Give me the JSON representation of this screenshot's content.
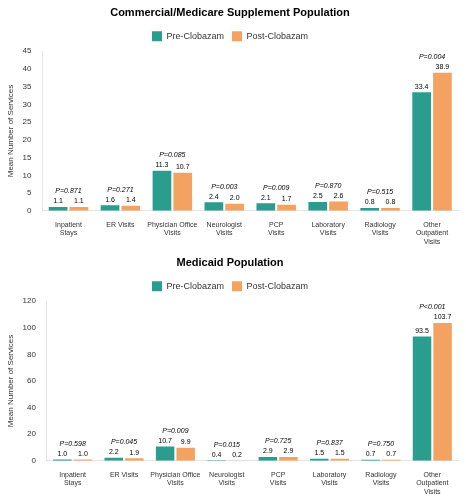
{
  "chart_data": [
    {
      "type": "bar",
      "title": "Commercial/Medicare Supplement Population",
      "categories": [
        "Inpatient\nStays",
        "ER Visits",
        "Physician Office\nVisits",
        "Neurologist\nVisits",
        "PCP\nVisits",
        "Laboratory\nVisits",
        "Radiology\nVisits",
        "Other\nOutpatient\nVisits"
      ],
      "series": [
        {
          "name": "Pre-Clobazam",
          "color": "#2A9D8F",
          "values": [
            1.1,
            1.6,
            11.3,
            2.4,
            2.1,
            2.5,
            0.8,
            33.4
          ],
          "value_labels": [
            "1.1",
            "1.6",
            "11.3",
            "2.4",
            "2.1",
            "2.5",
            "0.8",
            "33.4"
          ]
        },
        {
          "name": "Post-Clobazam",
          "color": "#F4A261",
          "values": [
            1.1,
            1.4,
            10.7,
            2.0,
            1.7,
            2.6,
            0.8,
            38.9
          ],
          "value_labels": [
            "1.1",
            "1.4",
            "10.7",
            "2.0",
            "1.7",
            "2.6",
            "0.8",
            "38.9"
          ]
        }
      ],
      "annotations": [
        "P=0.871",
        "P=0.271",
        "P=0.085",
        "P=0.003",
        "P=0.009",
        "P=0.870",
        "P=0.515",
        "P=0.004"
      ],
      "ylabel": "Mean Number of Services",
      "ylim": [
        0,
        45
      ],
      "yticks": [
        0,
        5,
        10,
        15,
        20,
        25,
        30,
        35,
        40,
        45
      ],
      "grid": false,
      "legend": "top",
      "data_labels": true
    },
    {
      "type": "bar",
      "title": "Medicaid Population",
      "categories": [
        "Inpatient\nStays",
        "ER Visits",
        "Physician Office\nVisits",
        "Neurologist\nVisits",
        "PCP\nVisits",
        "Laboratory\nVisits",
        "Radiology\nVisits",
        "Other\nOutpatient\nVisits"
      ],
      "series": [
        {
          "name": "Pre-Clobazam",
          "color": "#2A9D8F",
          "values": [
            1.0,
            2.2,
            10.7,
            0.4,
            2.9,
            1.5,
            0.7,
            93.5
          ],
          "value_labels": [
            "1.0",
            "2.2",
            "10.7",
            "0.4",
            "2.9",
            "1.5",
            "0.7",
            "93.5"
          ]
        },
        {
          "name": "Post-Clobazam",
          "color": "#F4A261",
          "values": [
            1.0,
            1.9,
            9.9,
            0.2,
            2.9,
            1.5,
            0.7,
            103.7
          ],
          "value_labels": [
            "1.0",
            "1.9",
            "9.9",
            "0.2",
            "2.9",
            "1.5",
            "0.7",
            "103.7"
          ]
        }
      ],
      "annotations": [
        "P=0.598",
        "P=0.045",
        "P=0.009",
        "P=0.015",
        "P=0.725",
        "P=0.837",
        "P=0.750",
        "P<0.001"
      ],
      "ylabel": "Mean Number of Services",
      "ylim": [
        0,
        120
      ],
      "yticks": [
        0,
        20,
        40,
        60,
        80,
        100,
        120
      ],
      "grid": false,
      "legend": "top",
      "data_labels": true
    }
  ]
}
